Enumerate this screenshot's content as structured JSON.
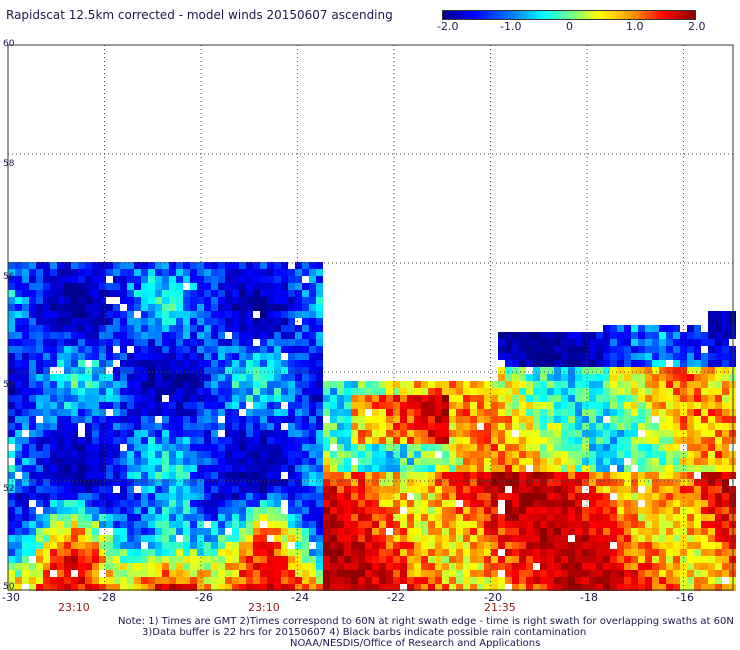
{
  "title": "Rapidscat 12.5km corrected - model winds 20150607 ascending",
  "colorbar": {
    "ticks": [
      "-2.0",
      "-1.0",
      "0",
      "1.0",
      "2.0"
    ],
    "colors": [
      "#00008b",
      "#0000ff",
      "#00ffff",
      "#ffff00",
      "#ff0000",
      "#8b0000"
    ]
  },
  "axes": {
    "y_labels": [
      "60",
      "58",
      "56",
      "54",
      "52",
      "50"
    ],
    "x_labels": [
      "-30",
      "-28",
      "-26",
      "-24",
      "-22",
      "-20",
      "-18",
      "-16"
    ]
  },
  "times": [
    "23:10",
    "23:10",
    "21:35"
  ],
  "notes": {
    "line1": "Note: 1) Times are GMT 2)Times correspond to 60N at right swath edge - time is right swath for overlapping swaths at 60N",
    "line2": "3)Data buffer is 22 hrs for 20150607 4) Black barbs indicate possible rain contamination",
    "line3": "NOAA/NESDIS/Office of Research and Applications"
  }
}
